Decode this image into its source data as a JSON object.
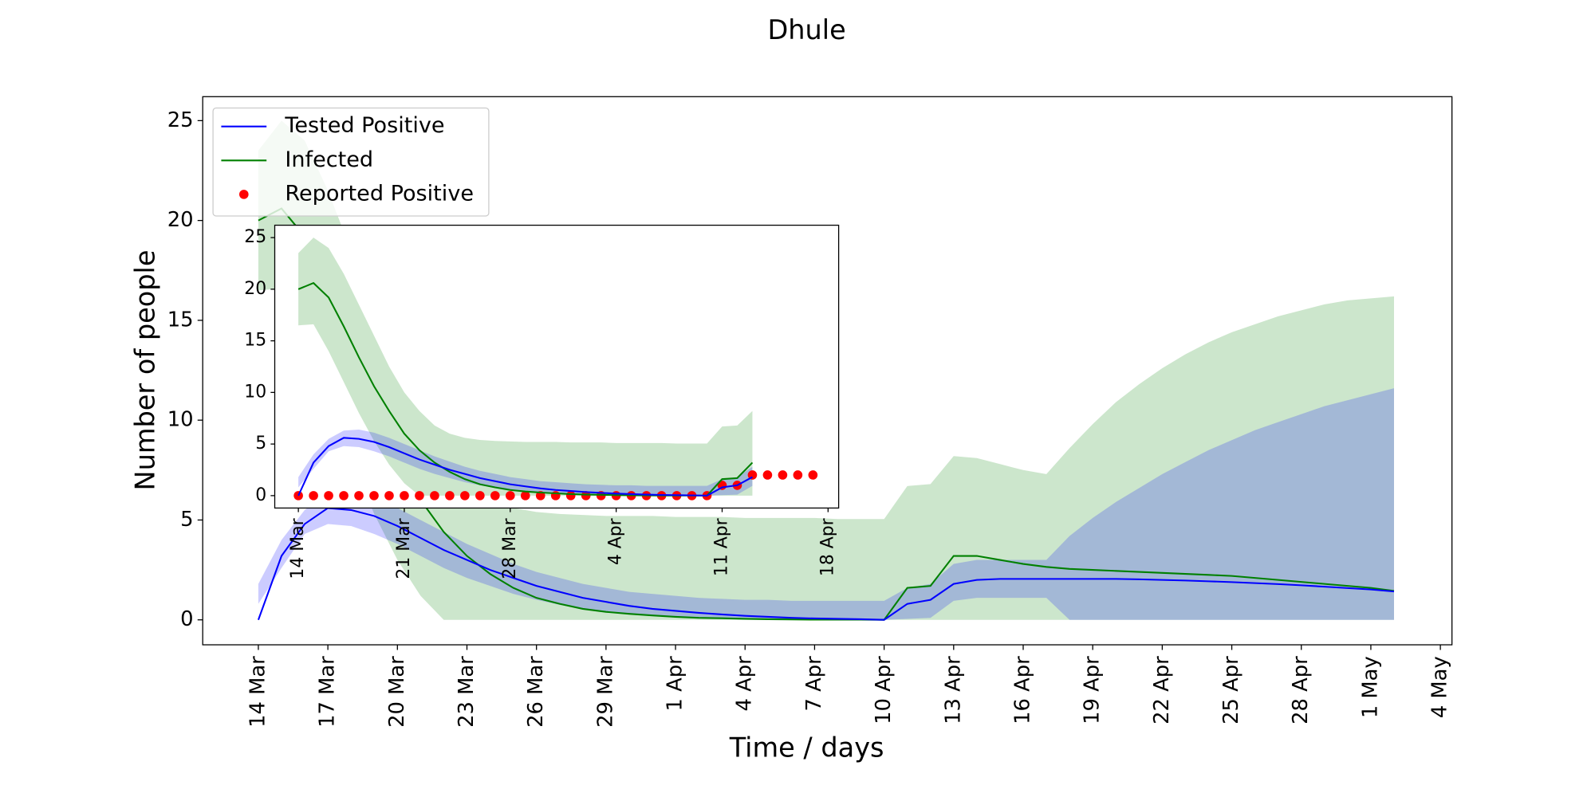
{
  "chart_data": [
    {
      "type": "line",
      "title": "Dhule",
      "xlabel": "Time / days",
      "ylabel": "Number of people",
      "xlim": [
        -2.4,
        51.5
      ],
      "ylim": [
        -1.25,
        26.2
      ],
      "xticks": [
        {
          "value": 0,
          "label": "14 Mar"
        },
        {
          "value": 3,
          "label": "17 Mar"
        },
        {
          "value": 6,
          "label": "20 Mar"
        },
        {
          "value": 9,
          "label": "23 Mar"
        },
        {
          "value": 12,
          "label": "26 Mar"
        },
        {
          "value": 15,
          "label": "29 Mar"
        },
        {
          "value": 18,
          "label": "1 Apr"
        },
        {
          "value": 21,
          "label": "4 Apr"
        },
        {
          "value": 24,
          "label": "7 Apr"
        },
        {
          "value": 27,
          "label": "10 Apr"
        },
        {
          "value": 30,
          "label": "13 Apr"
        },
        {
          "value": 33,
          "label": "16 Apr"
        },
        {
          "value": 36,
          "label": "19 Apr"
        },
        {
          "value": 39,
          "label": "22 Apr"
        },
        {
          "value": 42,
          "label": "25 Apr"
        },
        {
          "value": 45,
          "label": "28 Apr"
        },
        {
          "value": 48,
          "label": "1 May"
        },
        {
          "value": 51,
          "label": "4 May"
        }
      ],
      "yticks": [
        0,
        5,
        10,
        15,
        20,
        25
      ],
      "legend": {
        "loc": "upper left",
        "entries": [
          {
            "name": "Tested Positive",
            "color": "#0000ff",
            "marker": "line"
          },
          {
            "name": "Infected",
            "color": "#008000",
            "marker": "line"
          },
          {
            "name": "Reported Positive",
            "color": "#ff0000",
            "marker": "dot"
          }
        ]
      },
      "series": [
        {
          "color": "#008000",
          "x": [
            0,
            1,
            2,
            3,
            4,
            5,
            6,
            7,
            8,
            9,
            10,
            11,
            12,
            13,
            14,
            15,
            16,
            17,
            18,
            19,
            20,
            21,
            22,
            23,
            24,
            25,
            26,
            27,
            28,
            29,
            30,
            31,
            32,
            33,
            34,
            35,
            36,
            37,
            38,
            39,
            40,
            41,
            42,
            43,
            44,
            45,
            46,
            47,
            48,
            49
          ],
          "values": [
            20,
            20.6,
            19.2,
            16.4,
            13.4,
            10.6,
            8.2,
            6,
            4.4,
            3.2,
            2.3,
            1.6,
            1.1,
            0.8,
            0.55,
            0.4,
            0.3,
            0.22,
            0.15,
            0.1,
            0.08,
            0.05,
            0.03,
            0.02,
            0.01,
            0.01,
            0.01,
            0,
            1.6,
            1.7,
            3.2,
            3.2,
            3,
            2.8,
            2.65,
            2.55,
            2.5,
            2.45,
            2.4,
            2.35,
            2.3,
            2.25,
            2.2,
            2.1,
            2,
            1.9,
            1.8,
            1.7,
            1.6,
            1.45
          ],
          "lower": [
            16.5,
            16.6,
            14,
            11,
            8,
            5.3,
            3,
            1.2,
            0,
            0,
            0,
            0,
            0,
            0,
            0,
            0,
            0,
            0,
            0,
            0,
            0,
            0,
            0,
            0,
            0,
            0,
            0,
            0,
            0,
            0,
            0,
            0,
            0,
            0,
            0,
            0,
            0,
            0,
            0,
            0,
            0,
            0,
            0,
            0,
            0,
            0,
            0,
            0,
            0,
            0
          ],
          "upper": [
            23.5,
            25,
            24,
            21.5,
            18.5,
            15.5,
            12.5,
            10,
            8.2,
            6.8,
            6,
            5.6,
            5.4,
            5.3,
            5.25,
            5.2,
            5.2,
            5.2,
            5.15,
            5.15,
            5.15,
            5.1,
            5.1,
            5.1,
            5.1,
            5.05,
            5.05,
            5.05,
            6.7,
            6.8,
            8.2,
            8.1,
            7.8,
            7.5,
            7.3,
            8.6,
            9.8,
            10.9,
            11.8,
            12.6,
            13.3,
            13.9,
            14.4,
            14.8,
            15.2,
            15.5,
            15.8,
            16,
            16.1,
            16.2
          ]
        },
        {
          "color": "#0000ff",
          "x": [
            0,
            1,
            2,
            3,
            4,
            5,
            6,
            7,
            8,
            9,
            10,
            11,
            12,
            13,
            14,
            15,
            16,
            17,
            18,
            19,
            20,
            21,
            22,
            23,
            24,
            25,
            26,
            27,
            28,
            29,
            30,
            31,
            32,
            33,
            34,
            35,
            36,
            37,
            38,
            39,
            40,
            41,
            42,
            43,
            44,
            45,
            46,
            47,
            48,
            49
          ],
          "values": [
            0,
            3.2,
            4.8,
            5.6,
            5.5,
            5.2,
            4.7,
            4.1,
            3.5,
            3,
            2.5,
            2.1,
            1.7,
            1.4,
            1.1,
            0.9,
            0.7,
            0.55,
            0.45,
            0.35,
            0.27,
            0.2,
            0.15,
            0.1,
            0.07,
            0.05,
            0.03,
            0,
            0.8,
            1,
            1.8,
            2,
            2.05,
            2.05,
            2.05,
            2.05,
            2.05,
            2.05,
            2.03,
            2,
            1.97,
            1.93,
            1.89,
            1.84,
            1.79,
            1.73,
            1.66,
            1.59,
            1.52,
            1.42
          ],
          "lower": [
            0.8,
            2.6,
            4.3,
            4.8,
            4.7,
            4.3,
            3.8,
            3.2,
            2.6,
            2.1,
            1.7,
            1.3,
            1,
            0.75,
            0.55,
            0.4,
            0.3,
            0.22,
            0.16,
            0.11,
            0.08,
            0.05,
            0.03,
            0.02,
            0.01,
            0,
            0,
            0,
            0.05,
            0.1,
            0.95,
            1.1,
            1.1,
            1.1,
            1.1,
            0,
            0,
            0,
            0,
            0,
            0,
            0,
            0,
            0,
            0,
            0,
            0,
            0,
            0,
            0
          ],
          "upper": [
            1.8,
            4,
            5.5,
            6.3,
            6.4,
            6.1,
            5.6,
            5,
            4.4,
            3.8,
            3.3,
            2.8,
            2.4,
            2.1,
            1.8,
            1.6,
            1.4,
            1.3,
            1.2,
            1.1,
            1.05,
            1,
            1,
            0.95,
            0.95,
            0.95,
            0.95,
            0.95,
            1.6,
            1.8,
            2.8,
            3,
            3,
            3,
            3,
            4.2,
            5.1,
            5.9,
            6.6,
            7.3,
            7.9,
            8.5,
            9,
            9.5,
            9.9,
            10.3,
            10.7,
            11,
            11.3,
            11.6
          ]
        }
      ]
    },
    {
      "type": "line",
      "xlim": [
        -1.56,
        35.7
      ],
      "ylim": [
        -1.2,
        26.2
      ],
      "xticks": [
        {
          "value": 0,
          "label": "14 Mar"
        },
        {
          "value": 7,
          "label": "21 Mar"
        },
        {
          "value": 14,
          "label": "28 Mar"
        },
        {
          "value": 21,
          "label": "4 Apr"
        },
        {
          "value": 28,
          "label": "11 Apr"
        },
        {
          "value": 35,
          "label": "18 Apr"
        }
      ],
      "yticks": [
        0,
        5,
        10,
        15,
        20,
        25
      ],
      "series": [
        {
          "color": "#008000",
          "x": [
            0,
            1,
            2,
            3,
            4,
            5,
            6,
            7,
            8,
            9,
            10,
            11,
            12,
            13,
            14,
            15,
            16,
            17,
            18,
            19,
            20,
            21,
            22,
            23,
            24,
            25,
            26,
            27,
            28,
            29,
            30
          ],
          "values": [
            20,
            20.6,
            19.2,
            16.4,
            13.4,
            10.6,
            8.2,
            6,
            4.4,
            3.2,
            2.3,
            1.6,
            1.1,
            0.8,
            0.55,
            0.4,
            0.3,
            0.22,
            0.15,
            0.1,
            0.08,
            0.05,
            0.03,
            0.02,
            0.01,
            0.01,
            0.01,
            0,
            1.6,
            1.7,
            3.2
          ],
          "lower": [
            16.5,
            16.6,
            14,
            11,
            8,
            5.3,
            3,
            1.2,
            0,
            0,
            0,
            0,
            0,
            0,
            0,
            0,
            0,
            0,
            0,
            0,
            0,
            0,
            0,
            0,
            0,
            0,
            0,
            0,
            0,
            0,
            0
          ],
          "upper": [
            23.5,
            25,
            24,
            21.5,
            18.5,
            15.5,
            12.5,
            10,
            8.2,
            6.8,
            6,
            5.6,
            5.4,
            5.3,
            5.25,
            5.2,
            5.2,
            5.2,
            5.15,
            5.15,
            5.15,
            5.1,
            5.1,
            5.1,
            5.1,
            5.05,
            5.05,
            5.05,
            6.7,
            6.8,
            8.2
          ]
        },
        {
          "color": "#0000ff",
          "x": [
            0,
            1,
            2,
            3,
            4,
            5,
            6,
            7,
            8,
            9,
            10,
            11,
            12,
            13,
            14,
            15,
            16,
            17,
            18,
            19,
            20,
            21,
            22,
            23,
            24,
            25,
            26,
            27,
            28,
            29,
            30
          ],
          "values": [
            0,
            3.2,
            4.8,
            5.6,
            5.5,
            5.2,
            4.7,
            4.1,
            3.5,
            3,
            2.5,
            2.1,
            1.7,
            1.4,
            1.1,
            0.9,
            0.7,
            0.55,
            0.45,
            0.35,
            0.27,
            0.2,
            0.15,
            0.1,
            0.07,
            0.05,
            0.03,
            0,
            0.8,
            1,
            1.8
          ],
          "lower": [
            0.8,
            2.6,
            4.3,
            4.8,
            4.7,
            4.3,
            3.8,
            3.2,
            2.6,
            2.1,
            1.7,
            1.3,
            1,
            0.75,
            0.55,
            0.4,
            0.3,
            0.22,
            0.16,
            0.11,
            0.08,
            0.05,
            0.03,
            0.02,
            0.01,
            0,
            0,
            0,
            0.05,
            0.1,
            0.95
          ],
          "upper": [
            1.8,
            4,
            5.5,
            6.3,
            6.4,
            6.1,
            5.6,
            5,
            4.4,
            3.8,
            3.3,
            2.8,
            2.4,
            2.1,
            1.8,
            1.6,
            1.4,
            1.3,
            1.2,
            1.1,
            1.05,
            1,
            1,
            0.95,
            0.95,
            0.95,
            0.95,
            0.95,
            1.6,
            1.8,
            2.8
          ]
        },
        {
          "type": "scatter",
          "color": "#ff0000",
          "x": [
            0,
            1,
            2,
            3,
            4,
            5,
            6,
            7,
            8,
            9,
            10,
            11,
            12,
            13,
            14,
            15,
            16,
            17,
            18,
            19,
            20,
            21,
            22,
            23,
            24,
            25,
            26,
            27,
            28,
            29,
            30,
            31,
            32,
            33,
            34
          ],
          "values": [
            0,
            0,
            0,
            0,
            0,
            0,
            0,
            0,
            0,
            0,
            0,
            0,
            0,
            0,
            0,
            0,
            0,
            0,
            0,
            0,
            0,
            0,
            0,
            0,
            0,
            0,
            0,
            0,
            1,
            1,
            2,
            2,
            2,
            2,
            2
          ]
        }
      ]
    }
  ]
}
